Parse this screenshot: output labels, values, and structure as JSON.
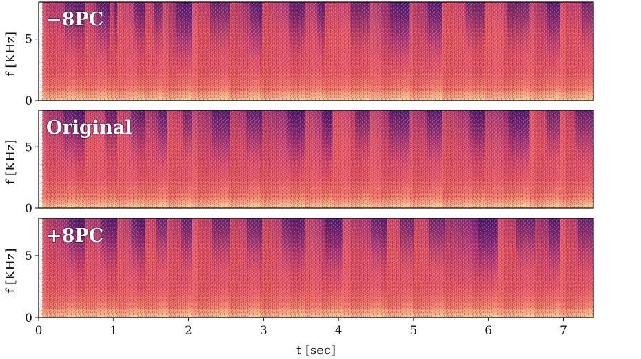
{
  "colors": {
    "colormap": [
      "#2d1160",
      "#51127c",
      "#721f81",
      "#b73779",
      "#de4968",
      "#f1605d",
      "#fe9f6d",
      "#fec287",
      "#fcfdbf"
    ],
    "frame": "#000000"
  },
  "chart_data": [
    {
      "type": "heatmap",
      "label": "−8PC",
      "ylabel": "f [KHz]",
      "xlim": [
        0,
        7.4
      ],
      "ylim": [
        0,
        8
      ],
      "yticks": [
        0,
        5
      ],
      "ytick_labels": [
        "0",
        "5"
      ],
      "onsets_sec": [
        0.05,
        0.62,
        0.95,
        1.05,
        1.42,
        1.65,
        2.05,
        2.55,
        2.98,
        3.55,
        3.82,
        4.42,
        4.95,
        5.38,
        5.95,
        6.55,
        6.95
      ],
      "harmonic_khz": [
        0.6,
        1.1,
        1.6,
        2.1,
        2.6,
        3.1,
        3.6
      ]
    },
    {
      "type": "heatmap",
      "label": "Original",
      "ylabel": "f [KHz]",
      "xlim": [
        0,
        7.4
      ],
      "ylim": [
        0,
        8
      ],
      "yticks": [
        0,
        5
      ],
      "ytick_labels": [
        "0",
        "5"
      ],
      "onsets_sec": [
        0.05,
        0.62,
        1.05,
        1.42,
        1.72,
        2.05,
        2.55,
        2.98,
        3.55,
        3.92,
        4.42,
        4.95,
        5.38,
        5.95,
        6.55,
        6.95
      ],
      "harmonic_khz": [
        0.6,
        1.1,
        1.6,
        2.1,
        2.6,
        3.1,
        3.6
      ]
    },
    {
      "type": "heatmap",
      "label": "+8PC",
      "ylabel": "f [KHz]",
      "xlim": [
        0,
        7.4
      ],
      "ylim": [
        0,
        8
      ],
      "yticks": [
        0,
        5
      ],
      "ytick_labels": [
        "0",
        "5"
      ],
      "xticks": [
        0,
        1,
        2,
        3,
        4,
        5,
        6,
        7
      ],
      "xtick_labels": [
        "0",
        "1",
        "2",
        "3",
        "4",
        "5",
        "6",
        "7"
      ],
      "xlabel": "t [sec]",
      "onsets_sec": [
        0.05,
        0.62,
        1.05,
        1.42,
        1.72,
        2.05,
        2.55,
        2.98,
        3.55,
        4.05,
        4.65,
        5.0,
        5.42,
        6.12,
        6.62,
        6.95
      ],
      "harmonic_khz": [
        0.6,
        1.1,
        1.6,
        2.1,
        2.6,
        3.1,
        3.6
      ]
    }
  ]
}
